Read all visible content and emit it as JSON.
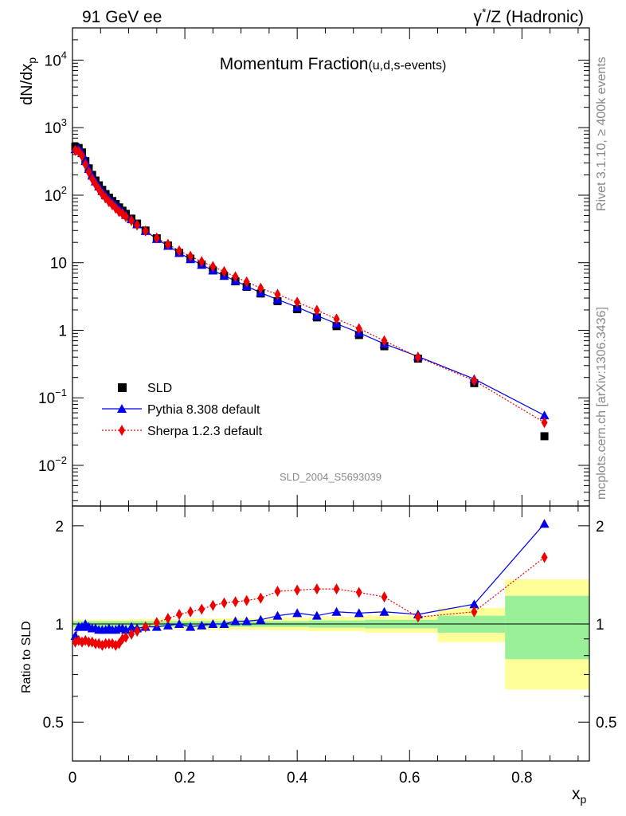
{
  "header": {
    "left": "91 GeV ee",
    "right_prefix": "γ",
    "right_sup": "*",
    "right_suffix": "/Z (Hadronic)"
  },
  "side_text": {
    "top": "Rivet 3.1.10, ≥ 400k events",
    "bottom": "mcplots.cern.ch [arXiv:1306.3436]"
  },
  "chart_data": {
    "type": "line",
    "title_main": "Momentum Fraction",
    "title_sub": "(u,d,s-events)",
    "watermark": "SLD_2004_S5693039",
    "ylabel_main": "dN/dx",
    "ylabel_sub": "p",
    "ratio_ylabel": "Ratio to SLD",
    "xlabel_main": "x",
    "xlabel_sub": "p",
    "xlim": [
      0,
      0.92
    ],
    "ylim_main": [
      0.0025,
      30000
    ],
    "log_y_main": true,
    "ylim_ratio": [
      0.38,
      2.3
    ],
    "log_y_ratio": true,
    "x_ticks": [
      "0",
      "0.2",
      "0.4",
      "0.6",
      "0.8"
    ],
    "main_y_ticks": [
      {
        "value": 0.01,
        "base": "10",
        "exp": "−2"
      },
      {
        "value": 0.1,
        "base": "10",
        "exp": "−1"
      },
      {
        "value": 1,
        "base": "1",
        "exp": ""
      },
      {
        "value": 10,
        "base": "10",
        "exp": ""
      },
      {
        "value": 100,
        "base": "10",
        "exp": "2"
      },
      {
        "value": 1000,
        "base": "10",
        "exp": "3"
      },
      {
        "value": 10000,
        "base": "10",
        "exp": "4"
      }
    ],
    "ratio_y_ticks": [
      {
        "value": 0.5,
        "label": "0.5"
      },
      {
        "value": 1,
        "label": "1"
      },
      {
        "value": 2,
        "label": "2"
      }
    ],
    "legend": [
      {
        "label": "SLD"
      },
      {
        "label": "Pythia 8.308 default"
      },
      {
        "label": "Sherpa 1.2.3 default"
      }
    ],
    "colors": {
      "sld": "#000000",
      "pythia": "#0000ee",
      "sherpa": "#ee0000",
      "band_inner": "#99f099",
      "band_outer": "#ffff99"
    },
    "x": [
      0.005,
      0.011,
      0.017,
      0.023,
      0.029,
      0.035,
      0.041,
      0.047,
      0.053,
      0.059,
      0.065,
      0.071,
      0.077,
      0.083,
      0.089,
      0.095,
      0.105,
      0.115,
      0.13,
      0.15,
      0.17,
      0.19,
      0.21,
      0.23,
      0.25,
      0.27,
      0.29,
      0.31,
      0.335,
      0.365,
      0.4,
      0.435,
      0.47,
      0.51,
      0.555,
      0.615,
      0.715,
      0.84
    ],
    "series": [
      {
        "name": "SLD",
        "values": [
          520,
          500,
          430,
          320,
          250,
          200,
          165,
          140,
          120,
          104,
          92,
          82,
          74,
          66,
          59,
          53,
          45,
          38,
          30,
          23,
          18,
          14,
          11.5,
          9.4,
          7.7,
          6.4,
          5.3,
          4.4,
          3.5,
          2.7,
          2.05,
          1.55,
          1.15,
          0.85,
          0.58,
          0.38,
          0.165,
          0.027
        ]
      },
      {
        "name": "Pythia 8.308 default",
        "values": [
          480,
          490,
          420,
          320,
          245,
          195,
          160,
          135,
          115,
          100,
          89,
          79,
          71,
          64,
          57,
          51,
          44,
          37,
          29.5,
          22.5,
          17.8,
          14,
          11.3,
          9.3,
          7.7,
          6.4,
          5.4,
          4.5,
          3.6,
          2.85,
          2.2,
          1.65,
          1.25,
          0.92,
          0.63,
          0.41,
          0.19,
          0.055
        ]
      },
      {
        "name": "Sherpa 1.2.3 default",
        "values": [
          460,
          445,
          380,
          285,
          220,
          175,
          145,
          122,
          103,
          91,
          80,
          72,
          64,
          57,
          53,
          48,
          42,
          36,
          29.5,
          23.2,
          18.8,
          15,
          12.5,
          10.4,
          8.8,
          7.4,
          6.2,
          5.2,
          4.2,
          3.4,
          2.6,
          1.98,
          1.47,
          1.06,
          0.7,
          0.4,
          0.18,
          0.043
        ]
      }
    ],
    "ratio_series": [
      {
        "name": "Pythia 8.308 default",
        "values": [
          0.92,
          0.98,
          0.98,
          1.0,
          0.98,
          0.97,
          0.97,
          0.96,
          0.96,
          0.96,
          0.97,
          0.96,
          0.96,
          0.97,
          0.97,
          0.96,
          0.98,
          0.97,
          0.98,
          0.98,
          0.99,
          1.0,
          0.98,
          0.99,
          1.0,
          1.0,
          1.02,
          1.02,
          1.03,
          1.06,
          1.08,
          1.06,
          1.09,
          1.08,
          1.09,
          1.07,
          1.15,
          2.03
        ]
      },
      {
        "name": "Sherpa 1.2.3 default",
        "values": [
          0.88,
          0.89,
          0.88,
          0.89,
          0.88,
          0.88,
          0.87,
          0.87,
          0.86,
          0.87,
          0.87,
          0.87,
          0.86,
          0.87,
          0.9,
          0.91,
          0.93,
          0.95,
          0.98,
          1.01,
          1.04,
          1.07,
          1.09,
          1.11,
          1.14,
          1.16,
          1.17,
          1.18,
          1.2,
          1.26,
          1.27,
          1.28,
          1.28,
          1.25,
          1.21,
          1.05,
          1.09,
          1.6
        ]
      }
    ],
    "error_band": {
      "x_edges": [
        0,
        0.1,
        0.2,
        0.3,
        0.35,
        0.42,
        0.52,
        0.65,
        0.77,
        0.92
      ],
      "inner": [
        0.02,
        0.02,
        0.02,
        0.02,
        0.02,
        0.025,
        0.03,
        0.06,
        0.22
      ],
      "outer": [
        0.03,
        0.035,
        0.04,
        0.04,
        0.045,
        0.05,
        0.06,
        0.12,
        0.37
      ]
    }
  }
}
